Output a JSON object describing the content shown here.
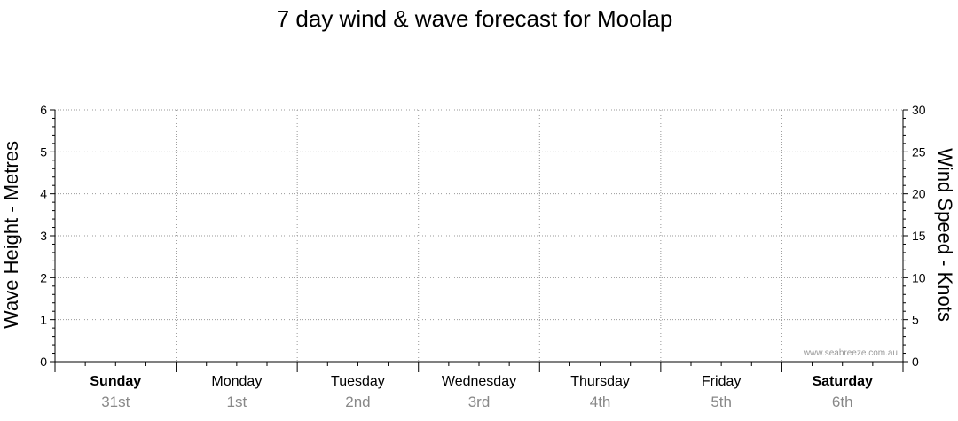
{
  "chart_data": {
    "type": "line",
    "title": "7 day wind & wave forecast for Moolap",
    "ylabel_left": "Wave Height - Metres",
    "ylabel_right": "Wind Speed - Knots",
    "ylim_left": [
      0,
      6
    ],
    "ylim_right": [
      0,
      30
    ],
    "yticks_left": [
      "0",
      "1",
      "2",
      "3",
      "4",
      "5",
      "6"
    ],
    "yticks_right": [
      "0",
      "5",
      "10",
      "15",
      "20",
      "25",
      "30"
    ],
    "grid": true,
    "days": [
      {
        "name": "Sunday",
        "date": "31st",
        "bold": true
      },
      {
        "name": "Monday",
        "date": "1st",
        "bold": false
      },
      {
        "name": "Tuesday",
        "date": "2nd",
        "bold": false
      },
      {
        "name": "Wednesday",
        "date": "3rd",
        "bold": false
      },
      {
        "name": "Thursday",
        "date": "4th",
        "bold": false
      },
      {
        "name": "Friday",
        "date": "5th",
        "bold": false
      },
      {
        "name": "Saturday",
        "date": "6th",
        "bold": true
      }
    ],
    "series": [],
    "watermark": "www.seabreeze.com.au"
  }
}
